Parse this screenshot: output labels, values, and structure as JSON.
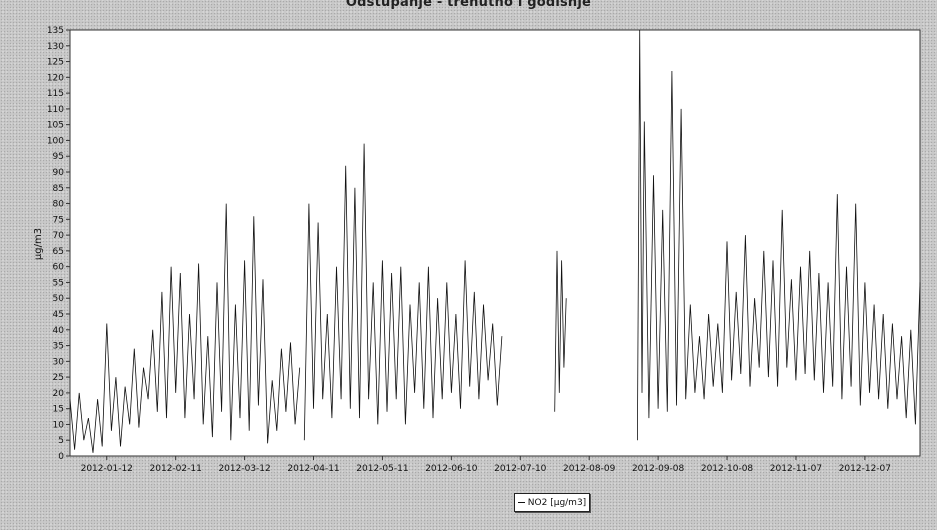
{
  "title": "Odstupanje - trenutno i godišnje",
  "chart_data": {
    "type": "line",
    "ylabel": "µg/m3",
    "ylim": [
      0,
      135
    ],
    "yticks": [
      0,
      5,
      10,
      15,
      20,
      25,
      30,
      35,
      40,
      45,
      50,
      55,
      60,
      65,
      70,
      75,
      80,
      85,
      90,
      95,
      100,
      105,
      110,
      115,
      120,
      125,
      130,
      135
    ],
    "xlim": [
      "2011-12-27",
      "2012-12-31"
    ],
    "xticks": [
      "2012-01-12",
      "2012-02-11",
      "2012-03-12",
      "2012-04-11",
      "2012-05-11",
      "2012-06-10",
      "2012-07-10",
      "2012-08-09",
      "2012-09-08",
      "2012-10-08",
      "2012-11-07",
      "2012-12-07"
    ],
    "grid": false,
    "legend_position": "bottom-center",
    "series": [
      {
        "name": "NO2 [µg/m3]",
        "color": "#111111",
        "segments": [
          {
            "x": [
              "2011-12-27",
              "2011-12-29",
              "2011-12-31",
              "2012-01-02",
              "2012-01-04",
              "2012-01-06",
              "2012-01-08",
              "2012-01-10",
              "2012-01-12",
              "2012-01-14",
              "2012-01-16",
              "2012-01-18",
              "2012-01-20",
              "2012-01-22",
              "2012-01-24",
              "2012-01-26",
              "2012-01-28",
              "2012-01-30",
              "2012-02-01",
              "2012-02-03",
              "2012-02-05",
              "2012-02-07",
              "2012-02-09",
              "2012-02-11",
              "2012-02-13",
              "2012-02-15",
              "2012-02-17",
              "2012-02-19",
              "2012-02-21",
              "2012-02-23",
              "2012-02-25",
              "2012-02-27",
              "2012-02-29",
              "2012-03-02",
              "2012-03-04",
              "2012-03-06",
              "2012-03-08",
              "2012-03-10",
              "2012-03-12",
              "2012-03-14",
              "2012-03-16",
              "2012-03-18",
              "2012-03-20",
              "2012-03-22",
              "2012-03-24",
              "2012-03-26",
              "2012-03-28",
              "2012-03-30",
              "2012-04-01",
              "2012-04-03",
              "2012-04-05"
            ],
            "y": [
              18,
              2,
              20,
              5,
              12,
              1,
              18,
              3,
              42,
              8,
              25,
              3,
              22,
              10,
              34,
              9,
              28,
              18,
              40,
              14,
              52,
              12,
              60,
              20,
              58,
              12,
              45,
              18,
              61,
              10,
              38,
              6,
              55,
              14,
              80,
              5,
              48,
              12,
              62,
              8,
              76,
              16,
              56,
              4,
              24,
              8,
              34,
              14,
              36,
              10,
              28
            ]
          },
          {
            "x": [
              "2012-04-07",
              "2012-04-09",
              "2012-04-11",
              "2012-04-13",
              "2012-04-15",
              "2012-04-17",
              "2012-04-19",
              "2012-04-21",
              "2012-04-23",
              "2012-04-25",
              "2012-04-27",
              "2012-04-29",
              "2012-05-01",
              "2012-05-03",
              "2012-05-05",
              "2012-05-07",
              "2012-05-09",
              "2012-05-11",
              "2012-05-13",
              "2012-05-15",
              "2012-05-17",
              "2012-05-19",
              "2012-05-21",
              "2012-05-23",
              "2012-05-25",
              "2012-05-27",
              "2012-05-29",
              "2012-05-31",
              "2012-06-02",
              "2012-06-04",
              "2012-06-06",
              "2012-06-08",
              "2012-06-10",
              "2012-06-12",
              "2012-06-14",
              "2012-06-16",
              "2012-06-18",
              "2012-06-20",
              "2012-06-22",
              "2012-06-24",
              "2012-06-26",
              "2012-06-28",
              "2012-06-30",
              "2012-07-02"
            ],
            "y": [
              5,
              80,
              15,
              74,
              18,
              45,
              12,
              60,
              18,
              92,
              15,
              85,
              12,
              99,
              18,
              55,
              10,
              62,
              14,
              58,
              18,
              60,
              10,
              48,
              20,
              55,
              15,
              60,
              12,
              50,
              18,
              55,
              20,
              45,
              15,
              62,
              22,
              52,
              18,
              48,
              24,
              42,
              16,
              38
            ]
          },
          {
            "x": [
              "2012-07-25",
              "2012-07-26",
              "2012-07-27",
              "2012-07-28",
              "2012-07-29",
              "2012-07-30"
            ],
            "y": [
              14,
              65,
              20,
              62,
              28,
              50
            ]
          },
          {
            "x": [
              "2012-08-30",
              "2012-08-31",
              "2012-09-01",
              "2012-09-02",
              "2012-09-04",
              "2012-09-06",
              "2012-09-08",
              "2012-09-10",
              "2012-09-12",
              "2012-09-14",
              "2012-09-16",
              "2012-09-18",
              "2012-09-20",
              "2012-09-22",
              "2012-09-24",
              "2012-09-26",
              "2012-09-28",
              "2012-09-30",
              "2012-10-02",
              "2012-10-04",
              "2012-10-06",
              "2012-10-08",
              "2012-10-10",
              "2012-10-12",
              "2012-10-14",
              "2012-10-16",
              "2012-10-18",
              "2012-10-20",
              "2012-10-22",
              "2012-10-24",
              "2012-10-26",
              "2012-10-28",
              "2012-10-30",
              "2012-11-01",
              "2012-11-03",
              "2012-11-05",
              "2012-11-07",
              "2012-11-09",
              "2012-11-11",
              "2012-11-13",
              "2012-11-15",
              "2012-11-17",
              "2012-11-19",
              "2012-11-21",
              "2012-11-23",
              "2012-11-25",
              "2012-11-27",
              "2012-11-29",
              "2012-12-01",
              "2012-12-03",
              "2012-12-05",
              "2012-12-07",
              "2012-12-09",
              "2012-12-11",
              "2012-12-13",
              "2012-12-15",
              "2012-12-17",
              "2012-12-19",
              "2012-12-21",
              "2012-12-23",
              "2012-12-25",
              "2012-12-27",
              "2012-12-29",
              "2012-12-31"
            ],
            "y": [
              5,
              135,
              20,
              106,
              12,
              89,
              15,
              78,
              14,
              122,
              16,
              110,
              18,
              48,
              20,
              38,
              18,
              45,
              22,
              42,
              20,
              68,
              24,
              52,
              26,
              70,
              22,
              50,
              28,
              65,
              25,
              62,
              22,
              78,
              28,
              56,
              24,
              60,
              26,
              65,
              24,
              58,
              20,
              55,
              22,
              83,
              18,
              60,
              22,
              80,
              16,
              55,
              20,
              48,
              18,
              45,
              15,
              42,
              18,
              38,
              12,
              40,
              10,
              55
            ]
          }
        ]
      }
    ]
  }
}
